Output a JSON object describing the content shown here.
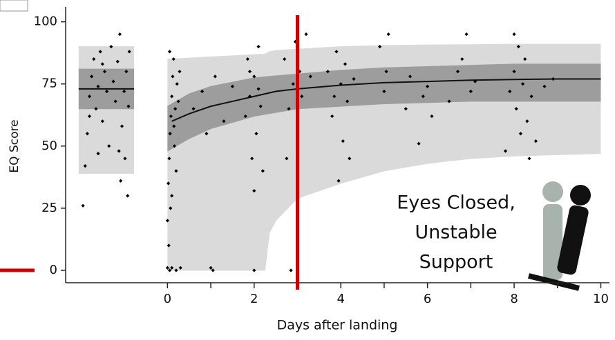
{
  "chart_data": {
    "type": "scatter",
    "xlabel": "Days after landing",
    "ylabel": "EQ Score",
    "annotation": [
      "Eyes Closed,",
      "Unstable",
      "Support"
    ],
    "xlim": [
      -2.35,
      10.2
    ],
    "ylim": [
      -5,
      106
    ],
    "xticks": [
      0,
      2,
      4,
      6,
      8,
      10
    ],
    "xminor": [
      1,
      3,
      5,
      7,
      9
    ],
    "yticks": [
      0,
      25,
      50,
      75,
      100
    ],
    "bands": [
      {
        "color": "#dadada",
        "x": [
          -2.05,
          -0.77
        ],
        "low": [
          39,
          39
        ],
        "high": [
          90,
          90
        ]
      },
      {
        "color": "#9d9d9d",
        "x": [
          -2.05,
          -0.77
        ],
        "low": [
          65,
          65
        ],
        "high": [
          81,
          81
        ]
      },
      {
        "color": "#dadada",
        "x": [
          0,
          2.25,
          2.35,
          2.5,
          3,
          4,
          5,
          6,
          7,
          8,
          9,
          10
        ],
        "low": [
          0,
          0,
          15,
          20,
          29,
          35,
          40,
          43,
          45,
          46,
          46.5,
          47
        ],
        "high": [
          85,
          87,
          88,
          88.5,
          89,
          90,
          90.5,
          90.7,
          90.8,
          91,
          91,
          91
        ]
      },
      {
        "color": "#9d9d9d",
        "x": [
          0,
          0.5,
          1,
          2,
          3,
          4,
          5,
          6,
          7,
          8,
          9,
          10
        ],
        "low": [
          48,
          53,
          57,
          62,
          65,
          66,
          67,
          67.5,
          68,
          68,
          68,
          68
        ],
        "high": [
          66,
          71,
          74,
          77.5,
          79,
          80.5,
          81.5,
          82,
          82.5,
          83,
          83,
          83
        ]
      }
    ],
    "fit": {
      "color": "#111111",
      "x": [
        -2.05,
        -0.77
      ],
      "values": [
        73,
        73
      ]
    },
    "fit2": {
      "color": "#111111",
      "x": [
        0.1,
        0.5,
        1,
        1.5,
        2,
        2.5,
        3,
        4,
        5,
        6,
        7,
        8,
        9,
        10
      ],
      "values": [
        60,
        63,
        66,
        68,
        70,
        72,
        73,
        74.5,
        75.5,
        76,
        76.5,
        76.8,
        77,
        77
      ]
    },
    "points": {
      "color": "#000000",
      "x": [
        -1.95,
        -1.9,
        -1.85,
        -1.8,
        -1.75,
        -1.7,
        -1.65,
        -1.6,
        -1.55,
        -1.5,
        -1.45,
        -1.4,
        -1.35,
        -1.3,
        -1.25,
        -1.2,
        -1.15,
        -1.1,
        -1.05,
        -1.0,
        -0.98,
        -0.95,
        -0.92,
        -0.9,
        -0.88,
        -1.08,
        -1.12,
        -1.6,
        -1.8,
        -1.5,
        0,
        0.05,
        0.1,
        0.2,
        0.3,
        0,
        0.02,
        0.04,
        0.06,
        0.08,
        0.1,
        0.12,
        0.14,
        0.16,
        0.18,
        0.2,
        0.22,
        0.05,
        0.1,
        0.15,
        0.25,
        0.28,
        0.03,
        0.07,
        0.6,
        0.8,
        1.0,
        1.05,
        1.1,
        1.3,
        1.5,
        0.9,
        1.8,
        1.85,
        1.9,
        1.95,
        2.0,
        2.05,
        2.1,
        2.15,
        2.2,
        2.0,
        2.0,
        2.1,
        1.9,
        2.7,
        2.8,
        2.85,
        2.9,
        2.95,
        3.0,
        3.05,
        3.1,
        3.2,
        3.3,
        2.75,
        3.7,
        3.8,
        3.85,
        3.9,
        3.95,
        4.0,
        4.05,
        4.1,
        4.15,
        4.2,
        4.3,
        4.9,
        5.0,
        5.05,
        5.1,
        5.5,
        5.6,
        5.8,
        5.9,
        6.0,
        6.1,
        6.5,
        6.7,
        6.9,
        7.0,
        7.1,
        6.8,
        7.8,
        7.9,
        8.0,
        8.05,
        8.1,
        8.15,
        8.2,
        8.25,
        8.3,
        8.35,
        8.4,
        8.0,
        8.5,
        8.7,
        8.9
      ],
      "values": [
        26,
        42,
        55,
        70,
        78,
        85,
        65,
        74,
        88,
        60,
        80,
        72,
        50,
        90,
        76,
        68,
        84,
        95,
        58,
        72,
        45,
        80,
        30,
        66,
        88,
        36,
        48,
        47,
        62,
        83,
        1,
        0,
        1,
        0,
        1,
        20,
        35,
        45,
        55,
        62,
        70,
        78,
        85,
        50,
        65,
        40,
        75,
        88,
        30,
        58,
        68,
        80,
        10,
        25,
        65,
        72,
        1,
        0,
        78,
        60,
        74,
        55,
        62,
        85,
        70,
        45,
        78,
        55,
        90,
        66,
        40,
        32,
        0,
        73,
        80,
        85,
        65,
        0,
        75,
        92,
        55,
        80,
        70,
        95,
        78,
        45,
        80,
        62,
        70,
        88,
        36,
        75,
        52,
        83,
        68,
        45,
        77,
        90,
        72,
        80,
        95,
        65,
        78,
        51,
        70,
        74,
        62,
        68,
        80,
        95,
        72,
        76,
        85,
        48,
        72,
        80,
        65,
        90,
        55,
        75,
        85,
        60,
        45,
        70,
        95,
        52,
        74,
        77
      ]
    },
    "reference": {
      "color": "#cc0000",
      "vline_x": 3,
      "ymark": 0
    }
  }
}
